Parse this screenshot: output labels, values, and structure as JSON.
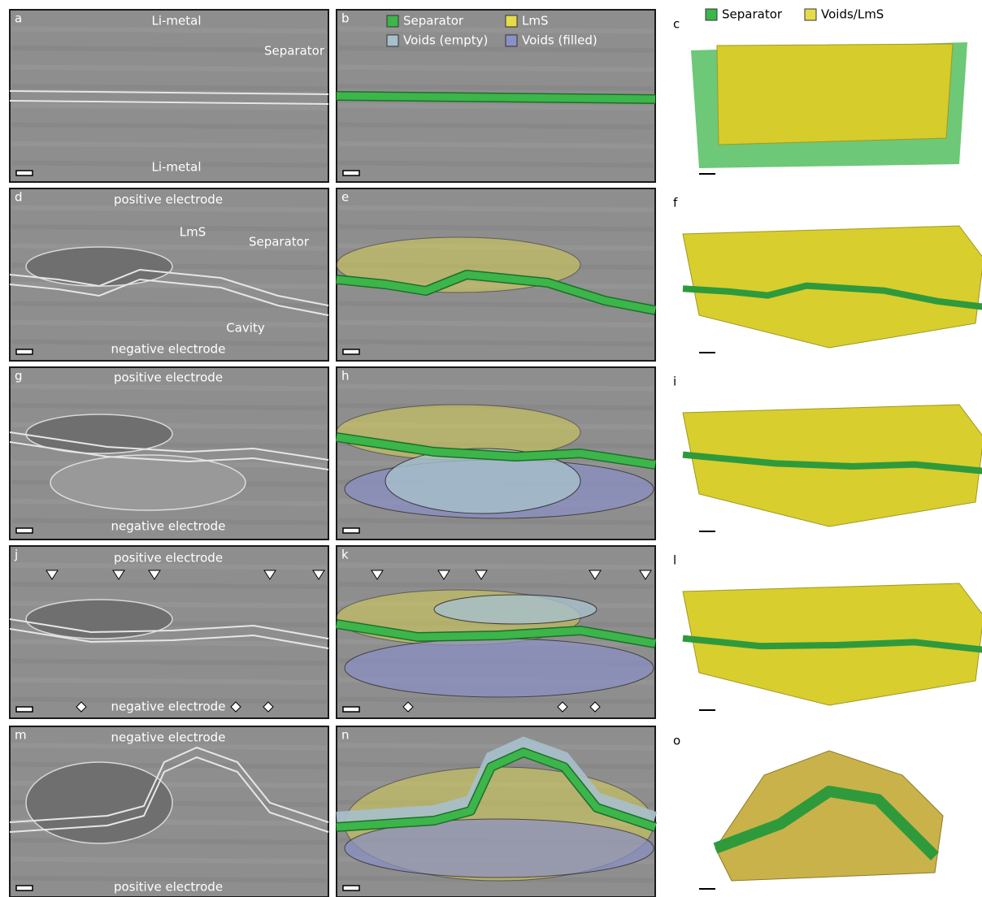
{
  "panels": [
    {
      "label": "a",
      "texts": [
        "Li-metal",
        "Separator",
        "Li-metal"
      ]
    },
    {
      "label": "b",
      "legend": [
        {
          "text": "Separator",
          "color": "#3cb54a"
        },
        {
          "text": "LmS",
          "color": "#e6dc4a"
        },
        {
          "text": "Voids (empty)",
          "color": "#a7c0cc"
        },
        {
          "text": "Voids (filled)",
          "color": "#8b90c6"
        }
      ]
    },
    {
      "label": "c",
      "legend": [
        {
          "text": "Separator",
          "color": "#3cb54a"
        },
        {
          "text": "Voids/LmS",
          "color": "#e6dc4a"
        }
      ]
    },
    {
      "label": "d",
      "texts": [
        "positive electrode",
        "LmS",
        "Separator",
        "Cavity",
        "negative electrode"
      ]
    },
    {
      "label": "e"
    },
    {
      "label": "f"
    },
    {
      "label": "g",
      "texts": [
        "positive electrode",
        "negative electrode"
      ]
    },
    {
      "label": "h"
    },
    {
      "label": "i"
    },
    {
      "label": "j",
      "texts": [
        "positive electrode",
        "negative electrode"
      ]
    },
    {
      "label": "k"
    },
    {
      "label": "l"
    },
    {
      "label": "m",
      "texts": [
        "negative electrode",
        "positive electrode"
      ]
    },
    {
      "label": "n"
    },
    {
      "label": "o"
    }
  ]
}
